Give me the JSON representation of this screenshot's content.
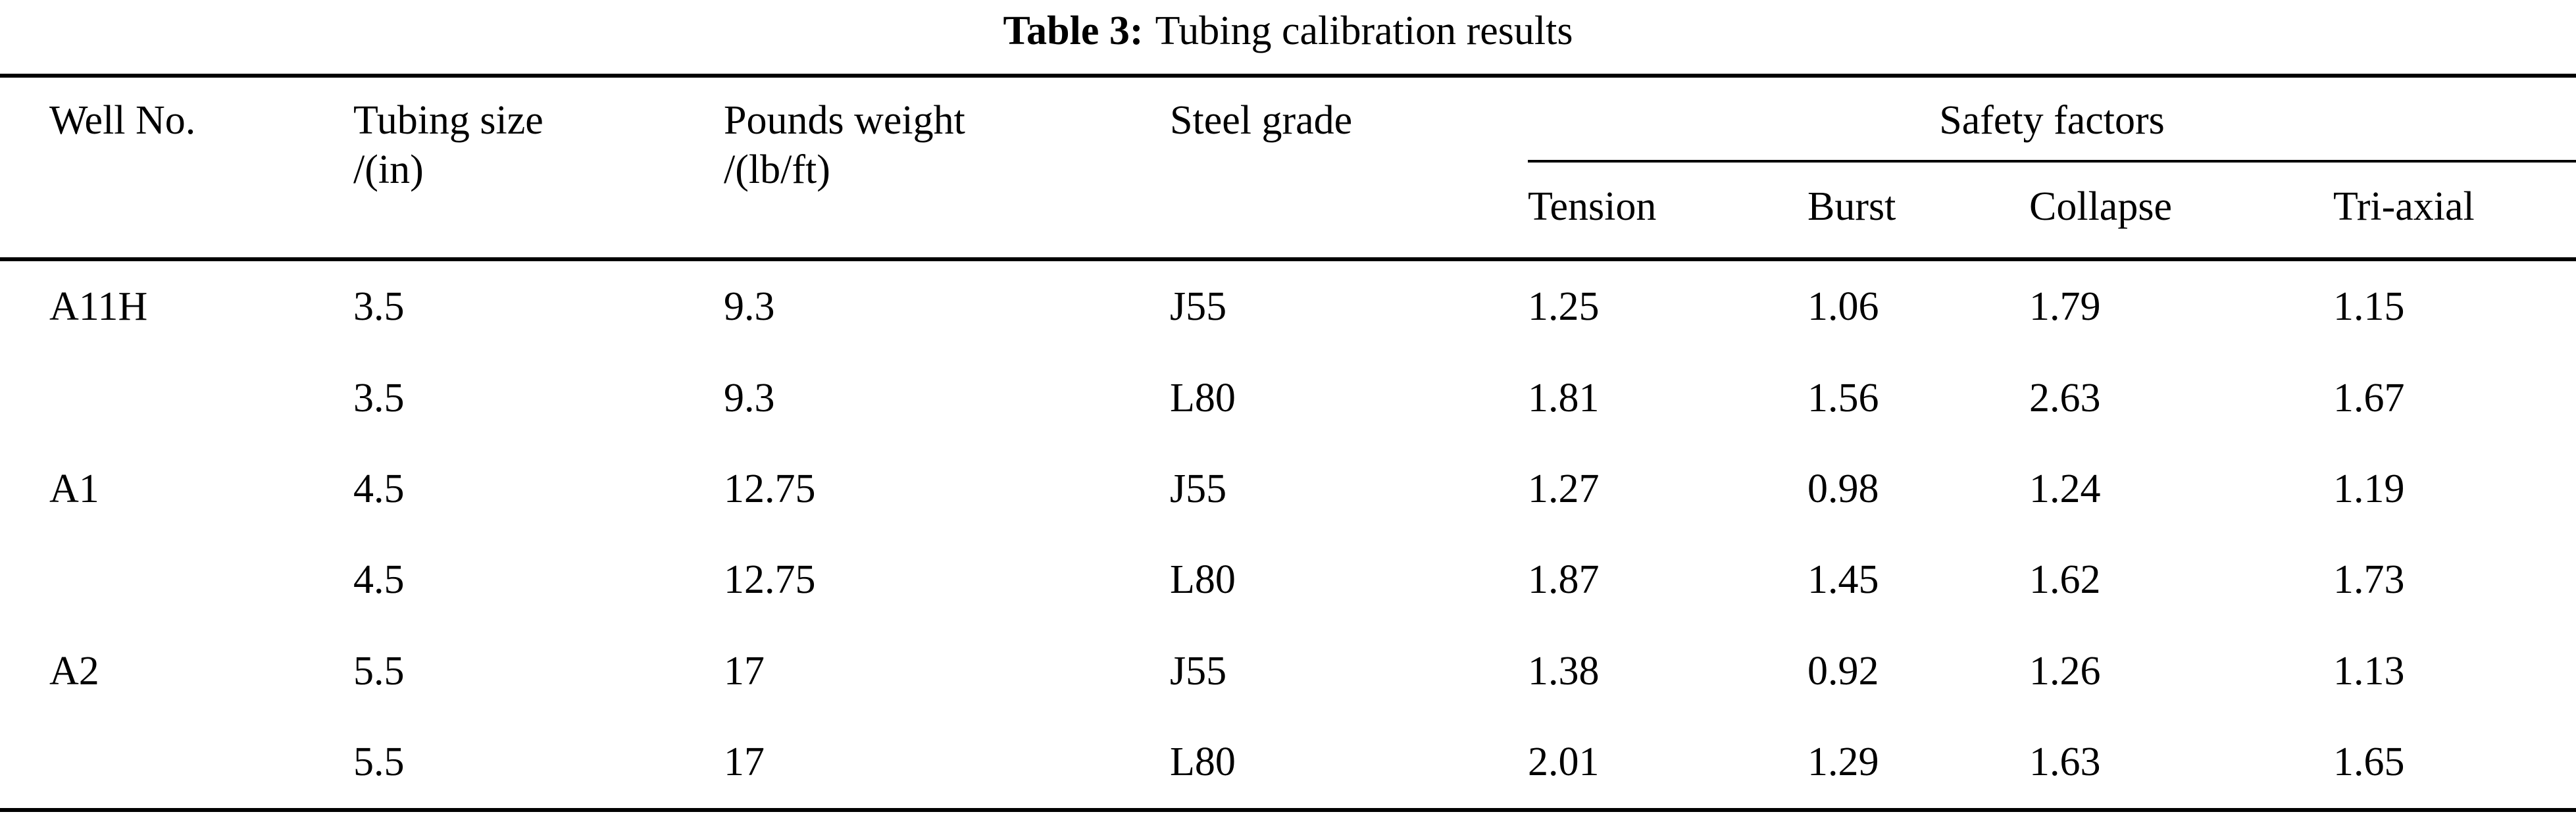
{
  "caption": {
    "label": "Table 3:",
    "title": "Tubing calibration results"
  },
  "table": {
    "headers": {
      "well_no": "Well No.",
      "tubing_size": {
        "line1": "Tubing size",
        "line2": "/(in)"
      },
      "pounds_weight": {
        "line1": "Pounds weight",
        "line2": "/(lb/ft)"
      },
      "steel_grade": "Steel grade",
      "safety_factors": "Safety factors",
      "safety_sub": [
        "Tension",
        "Burst",
        "Collapse",
        "Tri-axial"
      ]
    },
    "rows": [
      [
        "A11H",
        "3.5",
        "9.3",
        "J55",
        "1.25",
        "1.06",
        "1.79",
        "1.15"
      ],
      [
        "",
        "3.5",
        "9.3",
        "L80",
        "1.81",
        "1.56",
        "2.63",
        "1.67"
      ],
      [
        "A1",
        "4.5",
        "12.75",
        "J55",
        "1.27",
        "0.98",
        "1.24",
        "1.19"
      ],
      [
        "",
        "4.5",
        "12.75",
        "L80",
        "1.87",
        "1.45",
        "1.62",
        "1.73"
      ],
      [
        "A2",
        "5.5",
        "17",
        "J55",
        "1.38",
        "0.92",
        "1.26",
        "1.13"
      ],
      [
        "",
        "5.5",
        "17",
        "L80",
        "2.01",
        "1.29",
        "1.63",
        "1.65"
      ]
    ]
  }
}
